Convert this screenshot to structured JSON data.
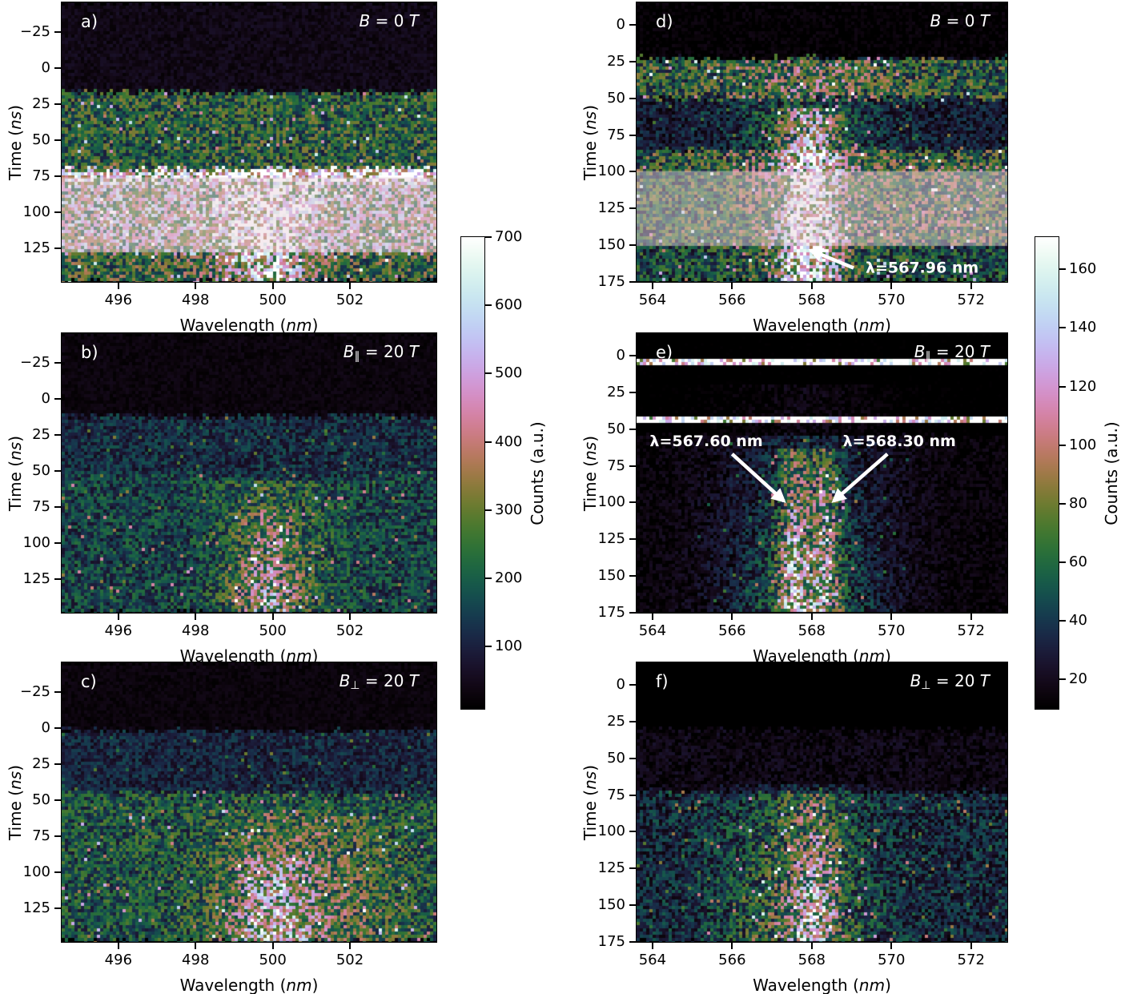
{
  "figure": {
    "background": "#ffffff",
    "colormap": "cubehelix",
    "highlight_color": "rgba(233,213,221,0.47)"
  },
  "axis_labels": {
    "x": {
      "name": "Wavelength",
      "unit": "nm"
    },
    "y": {
      "name": "Time",
      "unit": "ns"
    }
  },
  "colorbars": [
    {
      "id": "left",
      "label": "Counts (a.u.)",
      "vmin": 9,
      "vmax": 700,
      "ticks": [
        100,
        200,
        300,
        400,
        500,
        600,
        700
      ]
    },
    {
      "id": "right",
      "label": "Counts (a.u.)",
      "vmin": 10,
      "vmax": 171,
      "ticks": [
        20,
        40,
        60,
        80,
        100,
        120,
        140,
        160
      ]
    }
  ],
  "chart_data": [
    {
      "type": "heatmap",
      "id": "a",
      "letter": "a)",
      "field": {
        "symbol": "B",
        "sub": "",
        "rest": " = 0 ",
        "unit": "T"
      },
      "x_range": [
        494.53,
        504.24
      ],
      "y_range": [
        -45.3,
        148.6
      ],
      "x_ticks": [
        496,
        498,
        500,
        502
      ],
      "y_ticks": [
        -25,
        0,
        25,
        50,
        75,
        100,
        125
      ],
      "vmin": 9,
      "vmax": 700,
      "bands": [
        {
          "t0": -45.3,
          "t1": 17,
          "c": 42
        },
        {
          "t0": 17,
          "t1": 70,
          "c": 215
        },
        {
          "t0": 70,
          "t1": 79,
          "c": 545
        },
        {
          "t0": 79,
          "t1": 128,
          "c": 390
        },
        {
          "t0": 128,
          "t1": 148.6,
          "c": 245
        }
      ],
      "stripes": [
        {
          "x": 499.75,
          "w": 1.8,
          "t0": 70,
          "t1": 148.6,
          "c": 165,
          "grow": 0
        },
        {
          "x": 499.95,
          "w": 1.0,
          "t0": 92,
          "t1": 148.6,
          "c": 110,
          "grow": 0
        },
        {
          "x": 502.1,
          "w": 3.0,
          "t0": 70,
          "t1": 80,
          "c": 125,
          "grow": 0
        }
      ],
      "hlines": [],
      "highlight": {
        "t0": 76,
        "t1": 128
      },
      "annotations": []
    },
    {
      "type": "heatmap",
      "id": "b",
      "letter": "b)",
      "field": {
        "symbol": "B",
        "sub": "∥",
        "rest": " = 20 ",
        "unit": "T"
      },
      "x_range": [
        494.53,
        504.24
      ],
      "y_range": [
        -45.3,
        148.6
      ],
      "x_ticks": [
        496,
        498,
        500,
        502
      ],
      "y_ticks": [
        -25,
        0,
        25,
        50,
        75,
        100,
        125
      ],
      "vmin": 9,
      "vmax": 700,
      "bands": [
        {
          "t0": -45.3,
          "t1": 12,
          "c": 30
        },
        {
          "t0": 12,
          "t1": 52,
          "c": 118
        },
        {
          "t0": 52,
          "t1": 148.6,
          "c": 150
        }
      ],
      "stripes": [
        {
          "x": 500.0,
          "w": 2.0,
          "t0": 56,
          "t1": 148.6,
          "c": 135,
          "grow": 0.5
        },
        {
          "x": 499.9,
          "w": 1.0,
          "t0": 78,
          "t1": 148.6,
          "c": 125,
          "grow": 0.5
        }
      ],
      "hlines": [],
      "highlight": null,
      "annotations": []
    },
    {
      "type": "heatmap",
      "id": "c",
      "letter": "c)",
      "field": {
        "symbol": "B",
        "sub": "⊥",
        "rest": " = 20 ",
        "unit": "T"
      },
      "x_range": [
        494.53,
        504.24
      ],
      "y_range": [
        -45.3,
        148.6
      ],
      "x_ticks": [
        496,
        498,
        500,
        502
      ],
      "y_ticks": [
        -25,
        0,
        25,
        50,
        75,
        100,
        125
      ],
      "vmin": 9,
      "vmax": 700,
      "bands": [
        {
          "t0": -45.3,
          "t1": 2,
          "c": 28
        },
        {
          "t0": 2,
          "t1": 45,
          "c": 105
        },
        {
          "t0": 45,
          "t1": 148.6,
          "c": 185
        }
      ],
      "stripes": [
        {
          "x": 500.15,
          "w": 2.4,
          "t0": 58,
          "t1": 148.6,
          "c": 145,
          "grow": 0.5
        },
        {
          "x": 500.0,
          "w": 1.3,
          "t0": 88,
          "t1": 148.6,
          "c": 155,
          "grow": 0.6
        },
        {
          "x": 502.2,
          "w": 2.2,
          "t0": 62,
          "t1": 148.6,
          "c": 55,
          "grow": 0.4
        }
      ],
      "hlines": [],
      "highlight": null,
      "annotations": []
    },
    {
      "type": "heatmap",
      "id": "d",
      "letter": "d)",
      "field": {
        "symbol": "B",
        "sub": "",
        "rest": " = 0 ",
        "unit": "T"
      },
      "x_range": [
        563.6,
        572.91
      ],
      "y_range": [
        -15.2,
        175.0
      ],
      "x_ticks": [
        564,
        566,
        568,
        570,
        572
      ],
      "y_ticks": [
        0,
        25,
        50,
        75,
        100,
        125,
        150,
        175
      ],
      "vmin": 10,
      "vmax": 171,
      "bands": [
        {
          "t0": -15.2,
          "t1": 23,
          "c": 11
        },
        {
          "t0": 23,
          "t1": 50,
          "c": 57
        },
        {
          "t0": 50,
          "t1": 85,
          "c": 28
        },
        {
          "t0": 85,
          "t1": 100,
          "c": 60
        },
        {
          "t0": 100,
          "t1": 150,
          "c": 56
        },
        {
          "t0": 150,
          "t1": 175,
          "c": 46
        }
      ],
      "stripes": [
        {
          "x": 567.9,
          "w": 2.6,
          "t0": 25,
          "t1": 175,
          "c": 20,
          "grow": 0
        },
        {
          "x": 567.92,
          "w": 1.0,
          "t0": 57,
          "t1": 175,
          "c": 82,
          "grow": 0.35
        },
        {
          "x": 571.7,
          "w": 2.4,
          "t0": 95,
          "t1": 150,
          "c": 14,
          "grow": 0
        }
      ],
      "hlines": [],
      "highlight": {
        "t0": 99.5,
        "t1": 150.5
      },
      "annotations": [
        {
          "text": "λ=567.96 nm",
          "tx": 569.35,
          "ty": 165.5,
          "anchor": "start",
          "tail": [
            569.05,
            165.5
          ],
          "tip": [
            567.98,
            153.5
          ]
        }
      ]
    },
    {
      "type": "heatmap",
      "id": "e",
      "letter": "e)",
      "field": {
        "symbol": "B",
        "sub": "∥",
        "rest": " = 20 ",
        "unit": "T"
      },
      "x_range": [
        563.6,
        572.91
      ],
      "y_range": [
        -15.2,
        175.0
      ],
      "x_ticks": [
        564,
        566,
        568,
        570,
        572
      ],
      "y_ticks": [
        0,
        25,
        50,
        75,
        100,
        125,
        150,
        175
      ],
      "vmin": 10,
      "vmax": 171,
      "bands": [
        {
          "t0": -15.2,
          "t1": 55,
          "c": 7
        },
        {
          "t0": 55,
          "t1": 175,
          "c": 13
        }
      ],
      "stripes": [
        {
          "x": 567.9,
          "w": 3.0,
          "t0": 20,
          "t1": 55,
          "c": 8,
          "grow": 0
        },
        {
          "x": 567.85,
          "w": 2.8,
          "t0": 55,
          "t1": 175,
          "c": 40,
          "grow": 0.55
        },
        {
          "x": 567.55,
          "w": 0.55,
          "t0": 63,
          "t1": 175,
          "c": 72,
          "grow": 0.5
        },
        {
          "x": 568.3,
          "w": 0.55,
          "t0": 63,
          "t1": 175,
          "c": 62,
          "grow": 0.5
        }
      ],
      "hlines": [
        {
          "t": 4.5,
          "h": 2.8,
          "c": 190
        },
        {
          "t": 43.5,
          "h": 2.8,
          "c": 180
        }
      ],
      "highlight": null,
      "annotations": [
        {
          "text": "λ=567.60 nm",
          "tx": 565.35,
          "ty": 58.5,
          "anchor": "middle",
          "tail": [
            566.0,
            67
          ],
          "tip": [
            567.3,
            99
          ]
        },
        {
          "text": "λ=568.30 nm",
          "tx": 570.2,
          "ty": 58.5,
          "anchor": "middle",
          "tail": [
            569.9,
            67
          ],
          "tip": [
            568.55,
            99
          ]
        }
      ]
    },
    {
      "type": "heatmap",
      "id": "f",
      "letter": "f)",
      "field": {
        "symbol": "B",
        "sub": "⊥",
        "rest": " = 20 ",
        "unit": "T"
      },
      "x_range": [
        563.6,
        572.91
      ],
      "y_range": [
        -15.2,
        175.0
      ],
      "x_ticks": [
        564,
        566,
        568,
        570,
        572
      ],
      "y_ticks": [
        0,
        25,
        50,
        75,
        100,
        125,
        150,
        175
      ],
      "vmin": 10,
      "vmax": 171,
      "bands": [
        {
          "t0": -15.2,
          "t1": 30,
          "c": 6
        },
        {
          "t0": 30,
          "t1": 73,
          "c": 16
        },
        {
          "t0": 73,
          "t1": 175,
          "c": 33
        }
      ],
      "stripes": [
        {
          "x": 567.6,
          "w": 2.5,
          "t0": 68,
          "t1": 175,
          "c": 36,
          "grow": 0.6
        },
        {
          "x": 568.05,
          "w": 0.9,
          "t0": 74,
          "t1": 175,
          "c": 58,
          "grow": 0.7
        }
      ],
      "hlines": [],
      "highlight": null,
      "annotations": []
    }
  ]
}
